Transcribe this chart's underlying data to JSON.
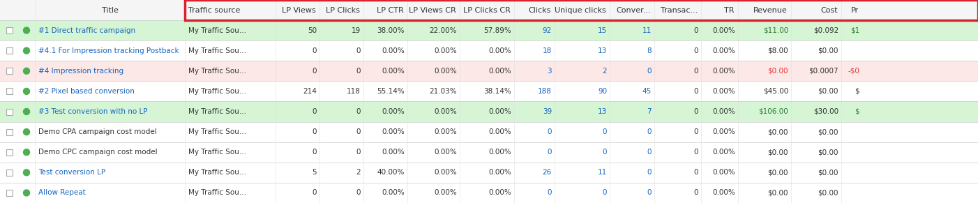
{
  "rows": [
    {
      "title": "#1 Direct traffic campaign",
      "traffic": "My Traffic Sou...",
      "lp_views": "50",
      "lp_clicks": "19",
      "lp_ctr": "38.00%",
      "lp_views_cr": "22.00%",
      "lp_clicks_cr": "57.89%",
      "clicks": "92",
      "unique_clicks": "15",
      "conv": "11",
      "trans": "0",
      "tr": "0.00%",
      "revenue": "$11.00",
      "cost": "$0.092",
      "profit": "$1",
      "bg": "#d5f5d5",
      "revenue_color": "#2e7d32",
      "profit_color": "#2e7d32",
      "dot_color": "#4caf50",
      "title_color": "#1565c0"
    },
    {
      "title": "#4.1 For Impression tracking Postback",
      "traffic": "My Traffic Sou...",
      "lp_views": "0",
      "lp_clicks": "0",
      "lp_ctr": "0.00%",
      "lp_views_cr": "0.00%",
      "lp_clicks_cr": "0.00%",
      "clicks": "18",
      "unique_clicks": "13",
      "conv": "8",
      "trans": "0",
      "tr": "0.00%",
      "revenue": "$8.00",
      "cost": "$0.00",
      "profit": "",
      "bg": "#ffffff",
      "revenue_color": "#333333",
      "profit_color": "#333333",
      "dot_color": "#4caf50",
      "title_color": "#1565c0"
    },
    {
      "title": "#4 Impression tracking",
      "traffic": "My Traffic Sou...",
      "lp_views": "0",
      "lp_clicks": "0",
      "lp_ctr": "0.00%",
      "lp_views_cr": "0.00%",
      "lp_clicks_cr": "0.00%",
      "clicks": "3",
      "unique_clicks": "2",
      "conv": "0",
      "trans": "0",
      "tr": "0.00%",
      "revenue": "$0.00",
      "cost": "$0.0007",
      "profit": "-$0",
      "bg": "#fce8e6",
      "revenue_color": "#e53935",
      "profit_color": "#e53935",
      "dot_color": "#4caf50",
      "title_color": "#1565c0"
    },
    {
      "title": "#2 Pixel based conversion",
      "traffic": "My Traffic Sou...",
      "lp_views": "214",
      "lp_clicks": "118",
      "lp_ctr": "55.14%",
      "lp_views_cr": "21.03%",
      "lp_clicks_cr": "38.14%",
      "clicks": "188",
      "unique_clicks": "90",
      "conv": "45",
      "trans": "0",
      "tr": "0.00%",
      "revenue": "$45.00",
      "cost": "$0.00",
      "profit": "$",
      "bg": "#ffffff",
      "revenue_color": "#333333",
      "profit_color": "#333333",
      "dot_color": "#4caf50",
      "title_color": "#1565c0"
    },
    {
      "title": "#3 Test conversion with no LP",
      "traffic": "My Traffic Sou...",
      "lp_views": "0",
      "lp_clicks": "0",
      "lp_ctr": "0.00%",
      "lp_views_cr": "0.00%",
      "lp_clicks_cr": "0.00%",
      "clicks": "39",
      "unique_clicks": "13",
      "conv": "7",
      "trans": "0",
      "tr": "0.00%",
      "revenue": "$106.00",
      "cost": "$30.00",
      "profit": "$",
      "bg": "#d5f5d5",
      "revenue_color": "#2e7d32",
      "profit_color": "#2e7d32",
      "dot_color": "#4caf50",
      "title_color": "#1565c0"
    },
    {
      "title": "Demo CPA campaign cost model",
      "traffic": "My Traffic Sou...",
      "lp_views": "0",
      "lp_clicks": "0",
      "lp_ctr": "0.00%",
      "lp_views_cr": "0.00%",
      "lp_clicks_cr": "0.00%",
      "clicks": "0",
      "unique_clicks": "0",
      "conv": "0",
      "trans": "0",
      "tr": "0.00%",
      "revenue": "$0.00",
      "cost": "$0.00",
      "profit": "",
      "bg": "#ffffff",
      "revenue_color": "#333333",
      "profit_color": "#333333",
      "dot_color": "#4caf50",
      "title_color": "#333333"
    },
    {
      "title": "Demo CPC campaign cost model",
      "traffic": "My Traffic Sou...",
      "lp_views": "0",
      "lp_clicks": "0",
      "lp_ctr": "0.00%",
      "lp_views_cr": "0.00%",
      "lp_clicks_cr": "0.00%",
      "clicks": "0",
      "unique_clicks": "0",
      "conv": "0",
      "trans": "0",
      "tr": "0.00%",
      "revenue": "$0.00",
      "cost": "$0.00",
      "profit": "",
      "bg": "#ffffff",
      "revenue_color": "#333333",
      "profit_color": "#333333",
      "dot_color": "#4caf50",
      "title_color": "#333333"
    },
    {
      "title": "Test conversion LP",
      "traffic": "My Traffic Sou...",
      "lp_views": "5",
      "lp_clicks": "2",
      "lp_ctr": "40.00%",
      "lp_views_cr": "0.00%",
      "lp_clicks_cr": "0.00%",
      "clicks": "26",
      "unique_clicks": "11",
      "conv": "0",
      "trans": "0",
      "tr": "0.00%",
      "revenue": "$0.00",
      "cost": "$0.00",
      "profit": "",
      "bg": "#ffffff",
      "revenue_color": "#333333",
      "profit_color": "#333333",
      "dot_color": "#4caf50",
      "title_color": "#1565c0"
    },
    {
      "title": "Allow Repeat",
      "traffic": "My Traffic Sou...",
      "lp_views": "0",
      "lp_clicks": "0",
      "lp_ctr": "0.00%",
      "lp_views_cr": "0.00%",
      "lp_clicks_cr": "0.00%",
      "clicks": "0",
      "unique_clicks": "0",
      "conv": "0",
      "trans": "0",
      "tr": "0.00%",
      "revenue": "$0.00",
      "cost": "$0.00",
      "profit": "",
      "bg": "#ffffff",
      "revenue_color": "#333333",
      "profit_color": "#333333",
      "dot_color": "#4caf50",
      "title_color": "#1565c0"
    }
  ],
  "normal_text_color": "#333333",
  "blue_text_color": "#1565c0",
  "header_bg": "#f5f5f5",
  "grid_color": "#cccccc",
  "red_border_color": "#d9232d",
  "font_size": 7.5,
  "header_font_size": 8.0
}
